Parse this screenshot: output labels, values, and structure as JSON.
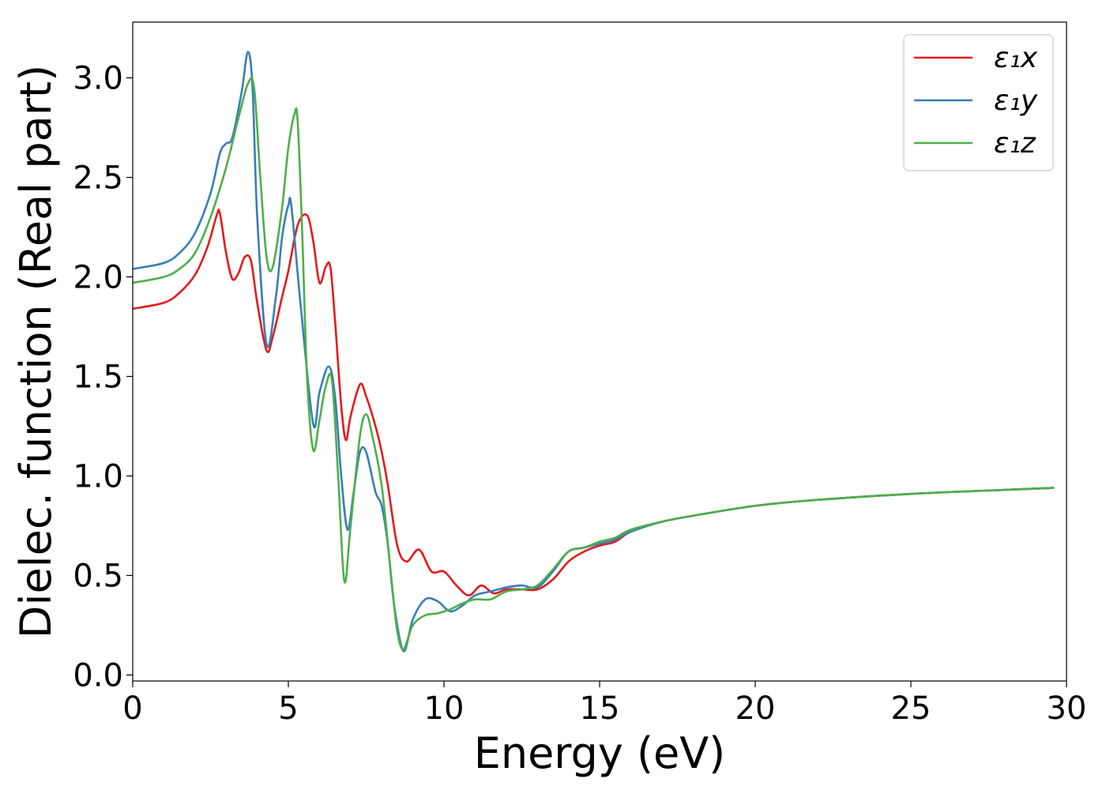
{
  "chart_data": {
    "type": "line",
    "title": "",
    "xlabel": "Energy (eV)",
    "ylabel": "Dielec. function (Real part)",
    "xlim": [
      0,
      30
    ],
    "ylim": [
      -0.03,
      3.28
    ],
    "xticks": [
      0,
      5,
      10,
      15,
      20,
      25,
      30
    ],
    "xtick_labels": [
      "0",
      "5",
      "10",
      "15",
      "20",
      "25",
      "30"
    ],
    "yticks": [
      0.0,
      0.5,
      1.0,
      1.5,
      2.0,
      2.5,
      3.0
    ],
    "ytick_labels": [
      "0.0",
      "0.5",
      "1.0",
      "1.5",
      "2.0",
      "2.5",
      "3.0"
    ],
    "grid": false,
    "legend_position": "top-right",
    "series": [
      {
        "name": "ε₁x",
        "color": "#e41a1c",
        "x": [
          0,
          1,
          1.5,
          2,
          2.4,
          2.7,
          2.8,
          3.0,
          3.2,
          3.4,
          3.6,
          3.8,
          4.0,
          4.3,
          4.5,
          4.8,
          5.0,
          5.3,
          5.6,
          5.8,
          6.0,
          6.2,
          6.35,
          6.5,
          6.7,
          6.85,
          7.0,
          7.3,
          7.5,
          7.8,
          8.0,
          8.2,
          8.5,
          8.8,
          9.2,
          9.6,
          10.0,
          10.4,
          10.8,
          11.2,
          11.6,
          12.0,
          12.5,
          13.0,
          13.5,
          14.0,
          14.5,
          15.0,
          15.5,
          16.0,
          17.0,
          18.0,
          20.0,
          22.0,
          25.0,
          28.0,
          29.6
        ],
        "y": [
          1.84,
          1.87,
          1.92,
          2.01,
          2.15,
          2.31,
          2.32,
          2.12,
          1.99,
          2.02,
          2.1,
          2.08,
          1.87,
          1.63,
          1.7,
          1.9,
          2.03,
          2.26,
          2.31,
          2.18,
          1.97,
          2.05,
          2.05,
          1.78,
          1.35,
          1.18,
          1.3,
          1.46,
          1.4,
          1.25,
          1.12,
          0.95,
          0.65,
          0.57,
          0.63,
          0.52,
          0.52,
          0.45,
          0.4,
          0.45,
          0.41,
          0.43,
          0.43,
          0.43,
          0.48,
          0.57,
          0.62,
          0.65,
          0.67,
          0.72,
          0.77,
          0.8,
          0.85,
          0.88,
          0.91,
          0.93,
          0.94
        ]
      },
      {
        "name": "ε₁y",
        "color": "#377eb8",
        "x": [
          0,
          1,
          1.5,
          2,
          2.5,
          2.8,
          3.0,
          3.2,
          3.5,
          3.7,
          3.85,
          4.0,
          4.3,
          4.6,
          4.8,
          5.0,
          5.1,
          5.4,
          5.8,
          6.0,
          6.3,
          6.5,
          6.7,
          6.9,
          7.1,
          7.3,
          7.5,
          7.8,
          8.0,
          8.2,
          8.4,
          8.7,
          9.0,
          9.4,
          9.8,
          10.2,
          10.6,
          11.0,
          11.5,
          12.0,
          12.5,
          13.0,
          13.5,
          14.0,
          14.5,
          15.0,
          15.5,
          16.0,
          17.0,
          18.0,
          20.0,
          22.0,
          25.0,
          28.0,
          29.6
        ],
        "y": [
          2.04,
          2.07,
          2.12,
          2.22,
          2.42,
          2.62,
          2.67,
          2.7,
          2.93,
          3.13,
          2.95,
          2.3,
          1.66,
          1.9,
          2.2,
          2.36,
          2.35,
          1.85,
          1.26,
          1.42,
          1.55,
          1.4,
          1.0,
          0.73,
          0.92,
          1.12,
          1.12,
          0.92,
          0.85,
          0.65,
          0.35,
          0.12,
          0.28,
          0.38,
          0.37,
          0.32,
          0.35,
          0.4,
          0.42,
          0.44,
          0.45,
          0.44,
          0.52,
          0.62,
          0.64,
          0.66,
          0.68,
          0.72,
          0.77,
          0.8,
          0.85,
          0.88,
          0.91,
          0.93,
          0.94
        ]
      },
      {
        "name": "ε₁z",
        "color": "#4daf4a",
        "x": [
          0,
          1,
          1.5,
          2,
          2.5,
          3.0,
          3.4,
          3.7,
          3.9,
          4.1,
          4.3,
          4.5,
          4.8,
          5.0,
          5.2,
          5.3,
          5.45,
          5.6,
          5.8,
          6.0,
          6.2,
          6.4,
          6.6,
          6.8,
          7.0,
          7.3,
          7.5,
          7.7,
          8.0,
          8.3,
          8.5,
          8.7,
          9.0,
          9.4,
          9.8,
          10.2,
          10.6,
          11.0,
          11.5,
          12.0,
          12.5,
          13.0,
          13.5,
          14.0,
          14.5,
          15.0,
          15.5,
          16.0,
          17.0,
          18.0,
          20.0,
          22.0,
          25.0,
          28.0,
          29.6
        ],
        "y": [
          1.97,
          2.0,
          2.04,
          2.12,
          2.3,
          2.55,
          2.8,
          2.97,
          2.95,
          2.5,
          2.1,
          2.05,
          2.35,
          2.65,
          2.82,
          2.78,
          2.2,
          1.5,
          1.13,
          1.28,
          1.45,
          1.48,
          1.0,
          0.47,
          0.75,
          1.2,
          1.31,
          1.2,
          0.95,
          0.5,
          0.22,
          0.13,
          0.25,
          0.3,
          0.31,
          0.33,
          0.36,
          0.38,
          0.38,
          0.42,
          0.43,
          0.45,
          0.53,
          0.62,
          0.64,
          0.67,
          0.69,
          0.73,
          0.77,
          0.8,
          0.85,
          0.88,
          0.91,
          0.93,
          0.94
        ]
      }
    ]
  }
}
